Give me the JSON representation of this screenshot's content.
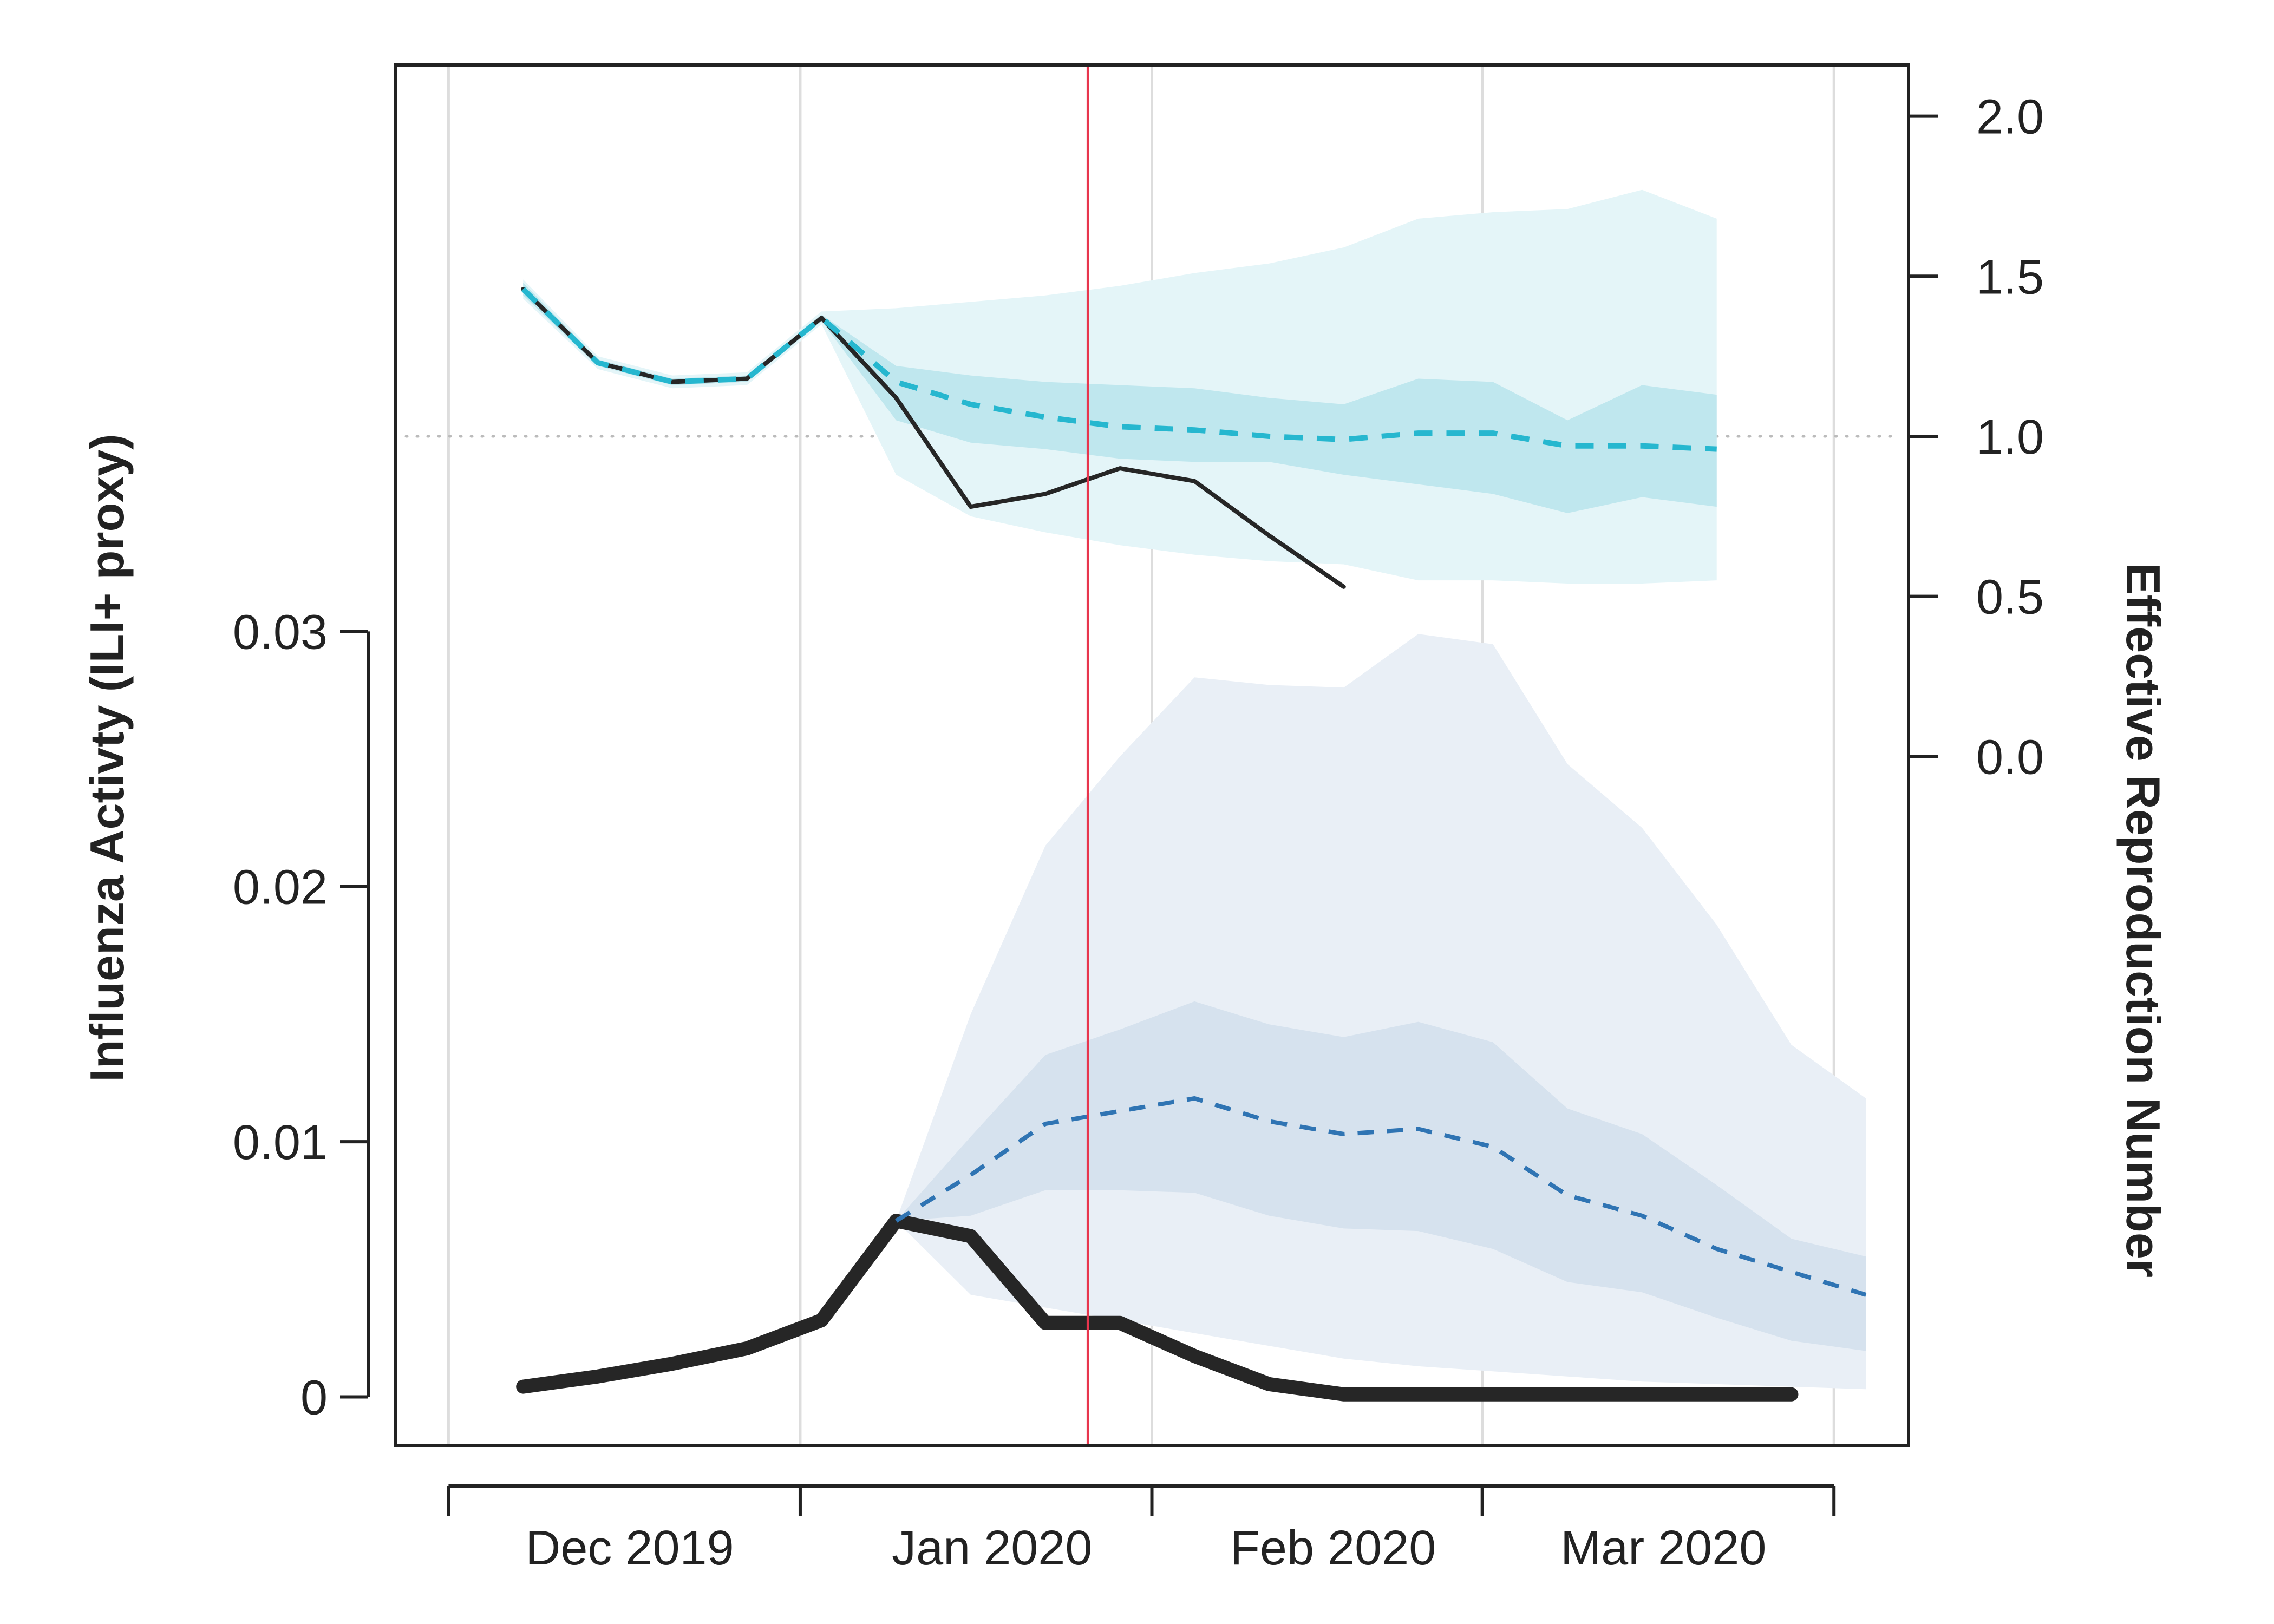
{
  "chart_data": {
    "type": "line",
    "title": "",
    "x_axis": {
      "type": "date",
      "range": [
        "2019-11-10",
        "2020-03-31"
      ],
      "ticks": [
        "2019-11-15",
        "2019-12-18",
        "2020-01-20",
        "2020-02-20",
        "2020-03-24"
      ],
      "labels": [
        {
          "text": "Dec 2019",
          "date": "2019-12-02"
        },
        {
          "text": "Jan 2020",
          "date": "2020-01-05"
        },
        {
          "text": "Feb 2020",
          "date": "2020-02-06"
        },
        {
          "text": "Mar 2020",
          "date": "2020-03-08"
        }
      ],
      "grid": true
    },
    "y_left": {
      "label": "Influenza Activty (ILI+ proxy)",
      "range": [
        -0.0019,
        0.0522
      ],
      "ticks": [
        0,
        0.01,
        0.02,
        0.03
      ],
      "tick_labels": [
        "0",
        "0.01",
        "0.02",
        "0.03"
      ]
    },
    "y_right": {
      "label": "Effective Reproduction Number",
      "range": [
        -2.152,
        2.16
      ],
      "ticks": [
        0,
        0.5,
        1.0,
        1.5,
        2.0
      ],
      "tick_labels": [
        "0.0",
        "0.5",
        "1.0",
        "1.5",
        "2.0"
      ],
      "reference_line": 1.0
    },
    "vertical_marker": {
      "date": "2020-01-14",
      "color": "#e8364e"
    },
    "colors": {
      "observed": "#262626",
      "rt_forecast": "#26b7cf",
      "rt_band_outer": "#e4f5f8",
      "rt_band_inner": "#bfe7ee",
      "activity_forecast": "#2f74b3",
      "activity_band_outer": "#e9eff6",
      "activity_band_inner": "#d6e2ee",
      "grid": "#dddddd",
      "reference": "#bbbbbb"
    },
    "series": [
      {
        "axis": "right",
        "style": "observed-thin",
        "x": [
          "2019-11-22",
          "2019-11-29",
          "2019-12-06",
          "2019-12-13",
          "2019-12-20",
          "2019-12-27",
          "2020-01-03",
          "2020-01-10",
          "2020-01-17",
          "2020-01-24",
          "2020-01-31",
          "2020-02-07"
        ],
        "values": [
          1.46,
          1.23,
          1.17,
          1.18,
          1.37,
          1.12,
          0.78,
          0.82,
          0.9,
          0.86,
          0.69,
          0.53
        ]
      },
      {
        "axis": "right",
        "style": "forecast-dashed",
        "x": [
          "2019-11-22",
          "2019-11-29",
          "2019-12-06",
          "2019-12-13",
          "2019-12-20",
          "2019-12-27",
          "2020-01-03",
          "2020-01-10",
          "2020-01-17",
          "2020-01-24",
          "2020-01-31",
          "2020-02-07",
          "2020-02-14",
          "2020-02-21",
          "2020-02-28",
          "2020-03-06",
          "2020-03-13"
        ],
        "values": [
          1.46,
          1.23,
          1.17,
          1.18,
          1.37,
          1.17,
          1.1,
          1.06,
          1.03,
          1.02,
          1.0,
          0.99,
          1.01,
          1.01,
          0.97,
          0.97,
          0.96
        ],
        "band_outer": {
          "lower": [
            1.43,
            1.21,
            1.15,
            1.16,
            1.35,
            0.88,
            0.75,
            0.7,
            0.66,
            0.63,
            0.61,
            0.6,
            0.55,
            0.55,
            0.54,
            0.54,
            0.55
          ],
          "upper": [
            1.49,
            1.25,
            1.19,
            1.2,
            1.39,
            1.4,
            1.42,
            1.44,
            1.47,
            1.51,
            1.54,
            1.59,
            1.68,
            1.7,
            1.71,
            1.77,
            1.68
          ]
        },
        "band_inner": {
          "lower": [
            1.44,
            1.22,
            1.16,
            1.17,
            1.36,
            1.05,
            0.98,
            0.96,
            0.93,
            0.92,
            0.92,
            0.88,
            0.85,
            0.82,
            0.76,
            0.81,
            0.78
          ],
          "upper": [
            1.48,
            1.24,
            1.18,
            1.19,
            1.38,
            1.22,
            1.19,
            1.17,
            1.16,
            1.15,
            1.12,
            1.1,
            1.18,
            1.17,
            1.05,
            1.16,
            1.13
          ]
        }
      },
      {
        "axis": "left",
        "style": "observed-thick",
        "x": [
          "2019-11-22",
          "2019-11-29",
          "2019-12-06",
          "2019-12-13",
          "2019-12-20",
          "2019-12-27",
          "2020-01-03",
          "2020-01-10",
          "2020-01-17",
          "2020-01-24",
          "2020-01-31",
          "2020-02-07",
          "2020-02-14",
          "2020-02-21",
          "2020-02-28",
          "2020-03-06",
          "2020-03-13",
          "2020-03-20"
        ],
        "values": [
          0.0004,
          0.0008,
          0.0013,
          0.0019,
          0.003,
          0.0069,
          0.0063,
          0.0029,
          0.0029,
          0.0016,
          0.0005,
          0.0001,
          0.0001,
          0.0001,
          0.0001,
          0.0001,
          0.0001,
          0.0001
        ]
      },
      {
        "axis": "left",
        "style": "forecast-dashed",
        "x": [
          "2019-12-27",
          "2020-01-03",
          "2020-01-10",
          "2020-01-17",
          "2020-01-24",
          "2020-01-31",
          "2020-02-07",
          "2020-02-14",
          "2020-02-21",
          "2020-02-28",
          "2020-03-06",
          "2020-03-13",
          "2020-03-20",
          "2020-03-27"
        ],
        "values": [
          0.0069,
          0.0087,
          0.0107,
          0.0112,
          0.0117,
          0.0108,
          0.0103,
          0.0105,
          0.0098,
          0.0079,
          0.0071,
          0.0058,
          0.0049,
          0.004
        ],
        "band_outer": {
          "lower": [
            0.0069,
            0.004,
            0.0035,
            0.003,
            0.0025,
            0.002,
            0.0015,
            0.0012,
            0.001,
            0.0008,
            0.0006,
            0.0005,
            0.0004,
            0.0003
          ],
          "upper": [
            0.0069,
            0.015,
            0.0216,
            0.0251,
            0.0282,
            0.0279,
            0.0278,
            0.0299,
            0.0295,
            0.0248,
            0.0223,
            0.0185,
            0.0138,
            0.0117
          ]
        },
        "band_inner": {
          "lower": [
            0.0069,
            0.0071,
            0.0081,
            0.0081,
            0.008,
            0.0071,
            0.0066,
            0.0065,
            0.0058,
            0.0045,
            0.0041,
            0.0031,
            0.0022,
            0.0018
          ],
          "upper": [
            0.0069,
            0.0102,
            0.0134,
            0.0144,
            0.0155,
            0.0146,
            0.0141,
            0.0147,
            0.0139,
            0.0113,
            0.0103,
            0.0083,
            0.0062,
            0.0055
          ]
        }
      }
    ]
  }
}
